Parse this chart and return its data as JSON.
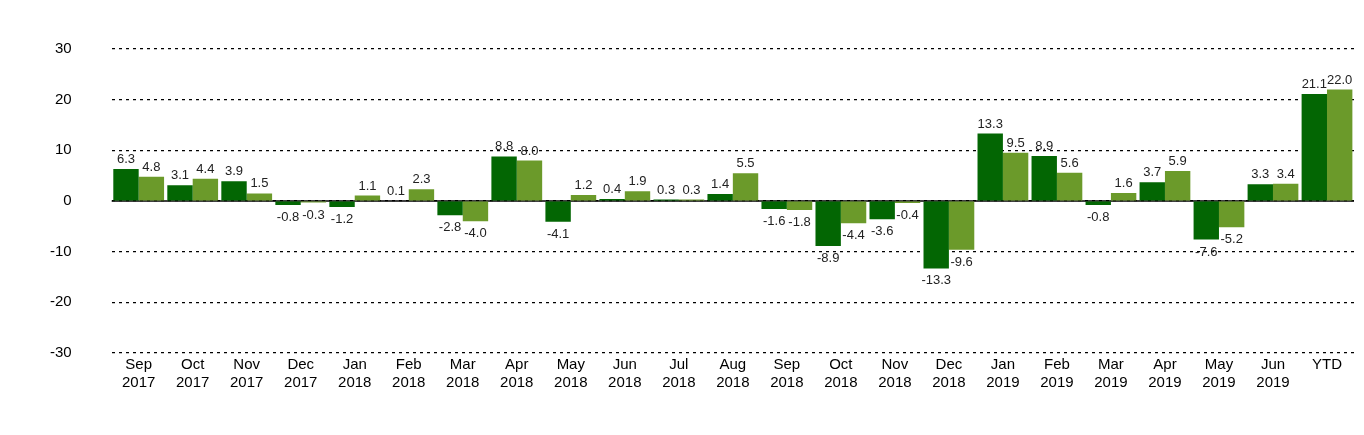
{
  "chart_data": {
    "type": "bar",
    "categories": [
      "Sep 2017",
      "Oct 2017",
      "Nov 2017",
      "Dec 2017",
      "Jan 2018",
      "Feb 2018",
      "Mar 2018",
      "Apr 2018",
      "May 2018",
      "Jun 2018",
      "Jul 2018",
      "Aug 2018",
      "Sep 2018",
      "Oct 2018",
      "Nov 2018",
      "Dec 2018",
      "Jan 2019",
      "Feb 2019",
      "Mar 2019",
      "Apr 2019",
      "May 2019",
      "Jun 2019",
      "YTD"
    ],
    "series": [
      {
        "color": "#036603",
        "values": [
          6.3,
          3.1,
          3.9,
          -0.8,
          -1.2,
          0.1,
          -2.8,
          8.8,
          -4.1,
          0.4,
          0.3,
          1.4,
          -1.6,
          -8.9,
          -3.6,
          -13.3,
          13.3,
          8.9,
          -0.8,
          3.7,
          -7.6,
          3.3,
          21.1
        ],
        "value_labels": [
          "6.3",
          "3.1",
          "3.9",
          "-0.8",
          "-1.2",
          "0.1",
          "-2.8",
          "8.8",
          "-4.1",
          "0.4",
          "0.3",
          "1.4",
          "-1.6",
          "-8.9",
          "-3.6",
          "-13.3",
          "13.3",
          "8.9",
          "-0.8",
          "3.7",
          "-7.6",
          "3.3",
          "21.1"
        ]
      },
      {
        "color": "#6b9a2a",
        "values": [
          4.8,
          4.4,
          1.5,
          -0.3,
          1.1,
          2.3,
          -4.0,
          8.0,
          1.2,
          1.9,
          0.3,
          5.5,
          -1.8,
          -4.4,
          -0.4,
          -9.6,
          9.5,
          5.6,
          1.6,
          5.9,
          -5.2,
          3.4,
          22.0
        ],
        "value_labels": [
          "4.8",
          "4.4",
          "1.5",
          "-0.3",
          "1.1",
          "2.3",
          "-4.0",
          "8.0",
          "1.2",
          "1.9",
          "0.3",
          "5.5",
          "-1.8",
          "-4.4",
          "-0.4",
          "-9.6",
          "9.5",
          "5.6",
          "1.6",
          "5.9",
          "-5.2",
          "3.4",
          "22.0"
        ]
      }
    ],
    "ylim": [
      -30,
      30
    ],
    "yticks": [
      -30,
      -20,
      -10,
      0,
      10,
      20,
      30
    ],
    "grid": "y",
    "legend": false
  }
}
